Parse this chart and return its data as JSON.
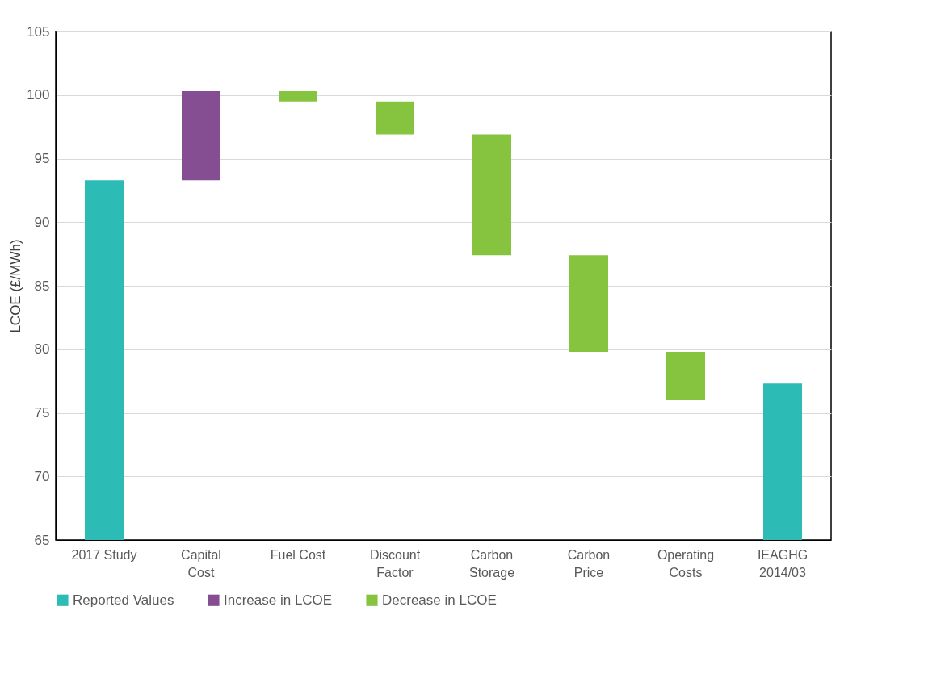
{
  "chart_data": {
    "type": "bar",
    "ylabel": "LCOE (£/MWh)",
    "categories": [
      "2017 Study",
      "Capital Cost",
      "Fuel Cost",
      "Discount Factor",
      "Carbon Storage",
      "Carbon Price",
      "Operating Costs",
      "IEAGHG 2014/03"
    ],
    "series": [
      {
        "name": "Reported Values",
        "color": "#2dbbb5",
        "base": [
          65,
          null,
          null,
          null,
          null,
          null,
          null,
          65
        ],
        "values": [
          28.3,
          null,
          null,
          null,
          null,
          null,
          null,
          12.3
        ]
      },
      {
        "name": "Increase in LCOE",
        "color": "#854e93",
        "base": [
          null,
          93.3,
          null,
          null,
          null,
          null,
          null,
          null
        ],
        "values": [
          null,
          7.0,
          null,
          null,
          null,
          null,
          null,
          null
        ]
      },
      {
        "name": "Decrease in LCOE",
        "color": "#86c440",
        "base": [
          null,
          null,
          100.3,
          99.5,
          96.9,
          87.4,
          79.8,
          null
        ],
        "values": [
          null,
          null,
          -0.8,
          -2.6,
          -9.5,
          -7.6,
          -3.8,
          null
        ]
      }
    ],
    "ylim": [
      65,
      105
    ],
    "yticks": [
      65,
      70,
      75,
      80,
      85,
      90,
      95,
      100,
      105
    ],
    "grid": "y",
    "legend": "bottom"
  }
}
